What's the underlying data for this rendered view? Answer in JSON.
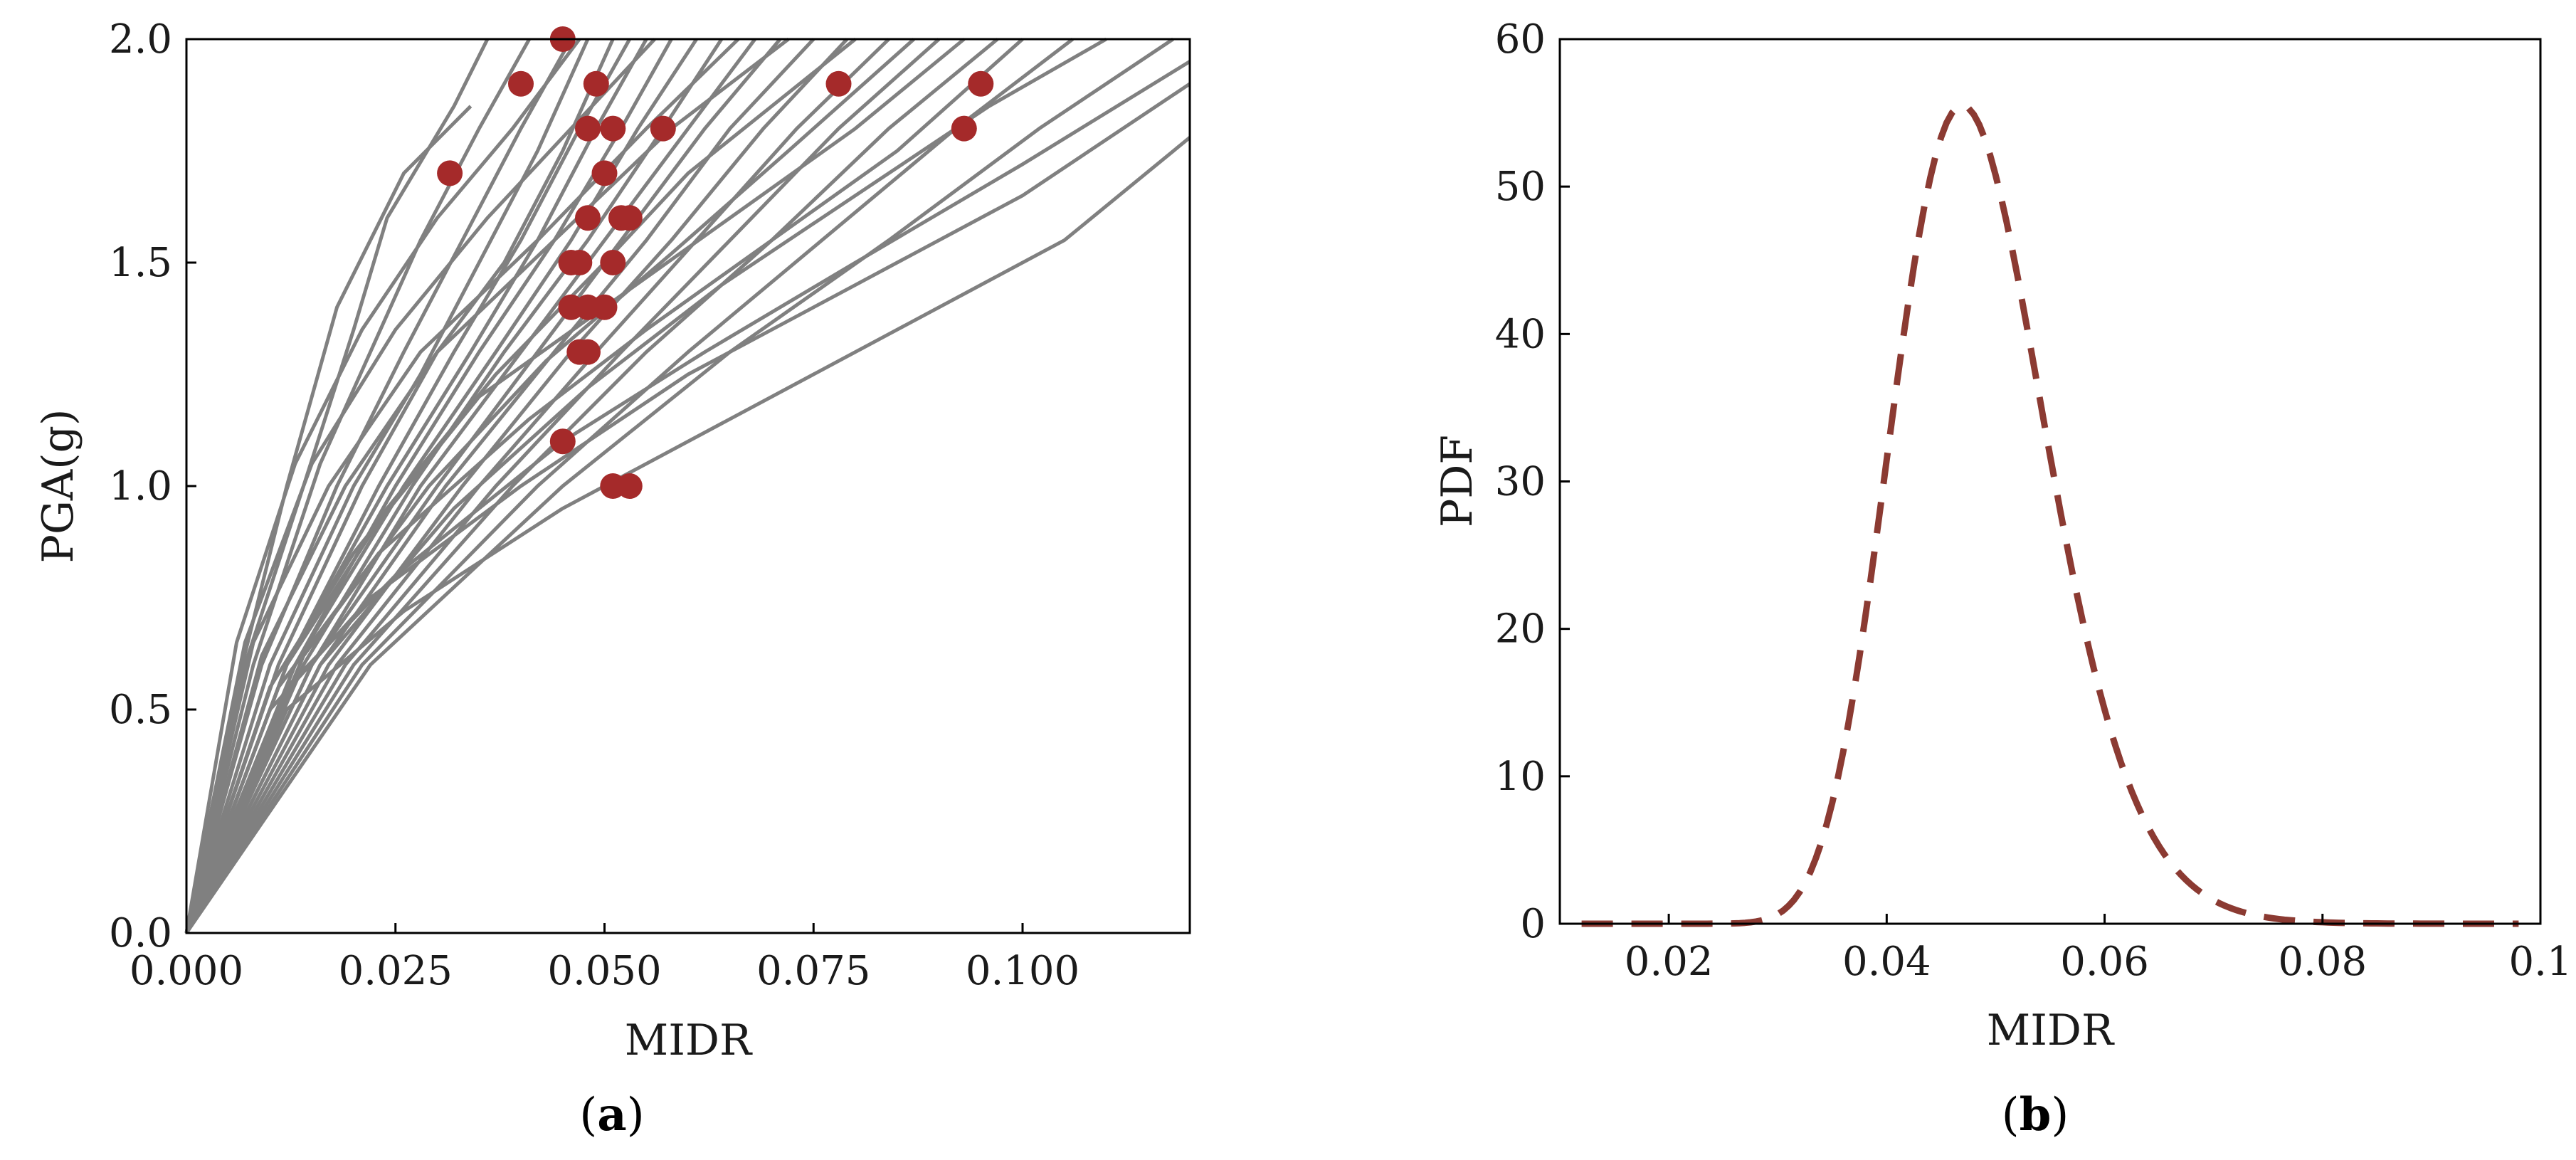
{
  "colors": {
    "curve": "#808080",
    "marker": "#a52a2a",
    "pdf_line": "#8b3a32",
    "axis": "#000000"
  },
  "chart_data": [
    {
      "id": "a",
      "type": "line",
      "panel_label": "a",
      "title": "",
      "xlabel": "MIDR",
      "ylabel": "PGA(g)",
      "xlim": [
        0,
        0.12
      ],
      "ylim": [
        0,
        2.0
      ],
      "xticks": [
        0,
        0.025,
        0.05,
        0.075,
        0.1
      ],
      "xtick_labels": [
        "0.000",
        "0.025",
        "0.050",
        "0.075",
        "0.100"
      ],
      "yticks": [
        0,
        0.5,
        1.0,
        1.5,
        2.0
      ],
      "ytick_labels": [
        "0.0",
        "0.5",
        "1.0",
        "1.5",
        "2.0"
      ],
      "ida_curves": [
        {
          "x": [
            0,
            0.006,
            0.012,
            0.018,
            0.026,
            0.034
          ],
          "y": [
            0,
            0.55,
            1.0,
            1.4,
            1.7,
            1.85
          ]
        },
        {
          "x": [
            0,
            0.007,
            0.014,
            0.02,
            0.024,
            0.032,
            0.036
          ],
          "y": [
            0,
            0.6,
            1.0,
            1.35,
            1.6,
            1.85,
            2.0
          ]
        },
        {
          "x": [
            0,
            0.008,
            0.016,
            0.022,
            0.028,
            0.035,
            0.041
          ],
          "y": [
            0,
            0.6,
            1.05,
            1.3,
            1.55,
            1.8,
            2.0
          ]
        },
        {
          "x": [
            0,
            0.009,
            0.018,
            0.026,
            0.033,
            0.04,
            0.046
          ],
          "y": [
            0,
            0.6,
            1.0,
            1.3,
            1.55,
            1.8,
            2.0
          ]
        },
        {
          "x": [
            0,
            0.01,
            0.02,
            0.028,
            0.035,
            0.042,
            0.048
          ],
          "y": [
            0,
            0.6,
            1.0,
            1.25,
            1.5,
            1.75,
            2.0
          ]
        },
        {
          "x": [
            0,
            0.011,
            0.021,
            0.03,
            0.038,
            0.045,
            0.051
          ],
          "y": [
            0,
            0.6,
            1.0,
            1.3,
            1.5,
            1.75,
            2.0
          ]
        },
        {
          "x": [
            0,
            0.012,
            0.023,
            0.032,
            0.04,
            0.047,
            0.053
          ],
          "y": [
            0,
            0.6,
            1.0,
            1.3,
            1.55,
            1.8,
            2.0
          ]
        },
        {
          "x": [
            0,
            0.012,
            0.024,
            0.034,
            0.042,
            0.049,
            0.055
          ],
          "y": [
            0,
            0.6,
            1.0,
            1.3,
            1.55,
            1.8,
            2.0
          ]
        },
        {
          "x": [
            0,
            0.013,
            0.025,
            0.035,
            0.044,
            0.052,
            0.058
          ],
          "y": [
            0,
            0.6,
            1.0,
            1.3,
            1.55,
            1.8,
            2.0
          ]
        },
        {
          "x": [
            0,
            0.013,
            0.026,
            0.037,
            0.046,
            0.054,
            0.061
          ],
          "y": [
            0,
            0.6,
            1.0,
            1.3,
            1.55,
            1.8,
            2.0
          ]
        },
        {
          "x": [
            0,
            0.014,
            0.027,
            0.038,
            0.048,
            0.057,
            0.064
          ],
          "y": [
            0,
            0.6,
            1.0,
            1.3,
            1.55,
            1.8,
            2.0
          ]
        },
        {
          "x": [
            0,
            0.015,
            0.028,
            0.04,
            0.05,
            0.06,
            0.068
          ],
          "y": [
            0,
            0.6,
            1.0,
            1.3,
            1.55,
            1.8,
            2.0
          ]
        },
        {
          "x": [
            0,
            0.015,
            0.03,
            0.042,
            0.052,
            0.062,
            0.071
          ],
          "y": [
            0,
            0.6,
            1.0,
            1.3,
            1.55,
            1.8,
            2.0
          ]
        },
        {
          "x": [
            0,
            0.016,
            0.031,
            0.044,
            0.055,
            0.065,
            0.075
          ],
          "y": [
            0,
            0.6,
            1.0,
            1.3,
            1.55,
            1.8,
            2.0
          ]
        },
        {
          "x": [
            0,
            0.017,
            0.033,
            0.046,
            0.058,
            0.069,
            0.079
          ],
          "y": [
            0,
            0.6,
            1.0,
            1.3,
            1.55,
            1.8,
            2.0
          ]
        },
        {
          "x": [
            0,
            0.018,
            0.035,
            0.049,
            0.061,
            0.073,
            0.084
          ],
          "y": [
            0,
            0.6,
            1.0,
            1.3,
            1.55,
            1.8,
            2.0
          ]
        },
        {
          "x": [
            0,
            0.019,
            0.037,
            0.052,
            0.065,
            0.078,
            0.09
          ],
          "y": [
            0,
            0.6,
            1.0,
            1.3,
            1.55,
            1.8,
            2.0
          ]
        },
        {
          "x": [
            0,
            0.02,
            0.039,
            0.055,
            0.07,
            0.084,
            0.097
          ],
          "y": [
            0,
            0.6,
            1.0,
            1.3,
            1.55,
            1.8,
            2.0
          ]
        },
        {
          "x": [
            0,
            0.021,
            0.042,
            0.06,
            0.076,
            0.092,
            0.106
          ],
          "y": [
            0,
            0.6,
            1.0,
            1.3,
            1.55,
            1.8,
            2.0
          ]
        },
        {
          "x": [
            0,
            0.022,
            0.045,
            0.065,
            0.084,
            0.102,
            0.118
          ],
          "y": [
            0,
            0.6,
            1.0,
            1.3,
            1.55,
            1.8,
            2.0
          ]
        },
        {
          "x": [
            0,
            0.01,
            0.022,
            0.04,
            0.06,
            0.08,
            0.1,
            0.12
          ],
          "y": [
            0,
            0.5,
            0.75,
            1.0,
            1.25,
            1.45,
            1.65,
            1.9
          ]
        },
        {
          "x": [
            0,
            0.012,
            0.026,
            0.045,
            0.065,
            0.085,
            0.105,
            0.12
          ],
          "y": [
            0,
            0.5,
            0.72,
            0.95,
            1.15,
            1.35,
            1.55,
            1.78
          ]
        },
        {
          "x": [
            0,
            0.012,
            0.025,
            0.045,
            0.062,
            0.08,
            0.1,
            0.12
          ],
          "y": [
            0,
            0.55,
            0.8,
            1.1,
            1.3,
            1.5,
            1.72,
            1.95
          ]
        },
        {
          "x": [
            0,
            0.011,
            0.023,
            0.041,
            0.055,
            0.07,
            0.085,
            0.1
          ],
          "y": [
            0,
            0.55,
            0.85,
            1.15,
            1.35,
            1.55,
            1.75,
            2.0
          ]
        },
        {
          "x": [
            0,
            0.01,
            0.02,
            0.035,
            0.05,
            0.065,
            0.08,
            0.093
          ],
          "y": [
            0,
            0.55,
            0.85,
            1.2,
            1.4,
            1.6,
            1.8,
            2.0
          ]
        },
        {
          "x": [
            0,
            0.012,
            0.024,
            0.037,
            0.05,
            0.06,
            0.07,
            0.08
          ],
          "y": [
            0,
            0.6,
            0.95,
            1.25,
            1.5,
            1.7,
            1.85,
            2.0
          ]
        },
        {
          "x": [
            0,
            0.008,
            0.017,
            0.028,
            0.042,
            0.055,
            0.066
          ],
          "y": [
            0,
            0.65,
            1.0,
            1.3,
            1.55,
            1.8,
            2.0
          ]
        },
        {
          "x": [
            0,
            0.007,
            0.015,
            0.025,
            0.036,
            0.046,
            0.056
          ],
          "y": [
            0,
            0.65,
            1.05,
            1.35,
            1.6,
            1.8,
            2.0
          ]
        },
        {
          "x": [
            0,
            0.006,
            0.013,
            0.021,
            0.03,
            0.039,
            0.047
          ],
          "y": [
            0,
            0.65,
            1.05,
            1.35,
            1.6,
            1.8,
            2.0
          ]
        },
        {
          "x": [
            0,
            0.009,
            0.019,
            0.03,
            0.044,
            0.058,
            0.072
          ],
          "y": [
            0,
            0.62,
            1.0,
            1.3,
            1.55,
            1.8,
            2.0
          ]
        },
        {
          "x": [
            0,
            0.014,
            0.029,
            0.043,
            0.058,
            0.072,
            0.087
          ],
          "y": [
            0,
            0.62,
            1.0,
            1.28,
            1.52,
            1.75,
            2.0
          ]
        },
        {
          "x": [
            0,
            0.016,
            0.032,
            0.048,
            0.064,
            0.08,
            0.096,
            0.11
          ],
          "y": [
            0,
            0.6,
            0.95,
            1.22,
            1.45,
            1.65,
            1.85,
            2.0
          ]
        }
      ],
      "markers": [
        {
          "x": 0.0315,
          "y": 1.7
        },
        {
          "x": 0.04,
          "y": 1.9
        },
        {
          "x": 0.045,
          "y": 2.0
        },
        {
          "x": 0.048,
          "y": 1.8
        },
        {
          "x": 0.049,
          "y": 1.9
        },
        {
          "x": 0.05,
          "y": 1.7
        },
        {
          "x": 0.051,
          "y": 1.8
        },
        {
          "x": 0.052,
          "y": 1.6
        },
        {
          "x": 0.053,
          "y": 1.6
        },
        {
          "x": 0.048,
          "y": 1.6
        },
        {
          "x": 0.046,
          "y": 1.5
        },
        {
          "x": 0.047,
          "y": 1.5
        },
        {
          "x": 0.051,
          "y": 1.5
        },
        {
          "x": 0.046,
          "y": 1.4
        },
        {
          "x": 0.048,
          "y": 1.4
        },
        {
          "x": 0.05,
          "y": 1.4
        },
        {
          "x": 0.047,
          "y": 1.3
        },
        {
          "x": 0.048,
          "y": 1.3
        },
        {
          "x": 0.045,
          "y": 1.1
        },
        {
          "x": 0.051,
          "y": 1.0
        },
        {
          "x": 0.053,
          "y": 1.0
        },
        {
          "x": 0.057,
          "y": 1.8
        },
        {
          "x": 0.078,
          "y": 1.9
        },
        {
          "x": 0.093,
          "y": 1.8
        },
        {
          "x": 0.095,
          "y": 1.9
        }
      ]
    },
    {
      "id": "b",
      "type": "line",
      "panel_label": "b",
      "title": "",
      "xlabel": "MIDR",
      "ylabel": "PDF",
      "xlim": [
        0.01,
        0.1
      ],
      "ylim": [
        0,
        60
      ],
      "xticks": [
        0.02,
        0.04,
        0.06,
        0.08,
        0.1
      ],
      "xtick_labels": [
        "0.02",
        "0.04",
        "0.06",
        "0.08",
        "0.1"
      ],
      "yticks": [
        0,
        10,
        20,
        30,
        40,
        50,
        60
      ],
      "ytick_labels": [
        "0",
        "10",
        "20",
        "30",
        "40",
        "50",
        "60"
      ],
      "curve": {
        "distribution": "lognormal",
        "median": 0.048,
        "beta": 0.15,
        "x_range": [
          0.012,
          0.098
        ],
        "peak_pdf": 55.5,
        "line_style": "dashed"
      }
    }
  ]
}
